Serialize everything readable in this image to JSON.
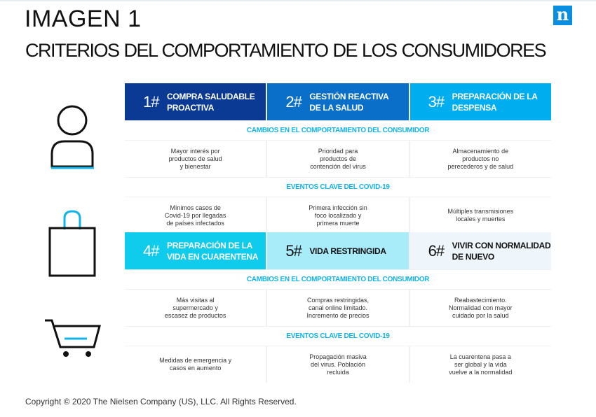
{
  "title": "IMAGEN 1",
  "subtitle": "CRITERIOS DEL COMPORTAMIENTO DE LOS CONSUMIDORES",
  "logo": "n",
  "labels": {
    "changes": "CAMBIOS EN EL COMPORTAMIENTO DEL CONSUMIDOR",
    "events": "EVENTOS CLAVE DEL COVID-19"
  },
  "phases": [
    {
      "num": "1#",
      "title": "Compra saludable\nproactiva",
      "color": "#0a3a94",
      "text": "#ffffff",
      "change": "Mayor interés por\nproductos de salud\ny bienestar",
      "event": "Mínimos casos de\nCovid-19 por llegadas\nde países infectados"
    },
    {
      "num": "2#",
      "title": "Gestión reactiva\nde la salud",
      "color": "#0a6fc8",
      "text": "#ffffff",
      "change": "Prioridad para\nproductos de\ncontención del virus",
      "event": "Primera infección sin\nfoco localizado y\nprimera muerte"
    },
    {
      "num": "3#",
      "title": "Preparación de la\ndespensa",
      "color": "#00adef",
      "text": "#ffffff",
      "change": "Almacenamiento de\nproductos no\nperecederos y de salud",
      "event": "Múltiples transmisiones\nlocales y muertes"
    },
    {
      "num": "4#",
      "title": "Preparación de la\nvida en cuarentena",
      "color": "#0fcbec",
      "text": "#ffffff",
      "change": "Más visitas al\nsupermercado y\nescasez de productos",
      "event": "Medidas de emergencia y\ncasos en aumento"
    },
    {
      "num": "5#",
      "title": "Vida restringida",
      "color": "#a8ecfa",
      "text": "#111111",
      "change": "Compras restringidas,\ncanal online limitado.\nIncremento de precios",
      "event": "Propagación masiva\ndel virus. Población\nrecluida"
    },
    {
      "num": "6#",
      "title": "Vivir con normalidad\nde nuevo",
      "color": "#eef5fb",
      "text": "#111111",
      "change": "Reabastecimiento.\nNormalidad con mayor\ncuidado por la salud",
      "event": "La cuarentena pasa a\nser global y la vida\nvuelve a la normalidad"
    }
  ],
  "icons": [
    "person-icon",
    "shopping-bag-icon",
    "shopping-cart-icon"
  ],
  "copyright": "Copyright © 2020 The Nielsen Company (US), LLC. All Rights Reserved."
}
